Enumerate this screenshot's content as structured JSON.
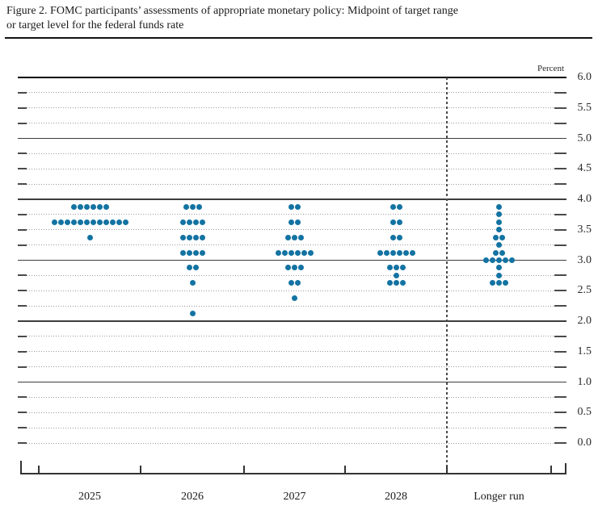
{
  "figure": {
    "title_line1": "Figure 2. FOMC participants’ assessments of appropriate monetary policy: Midpoint of target range",
    "title_line2": "or target level for the federal funds rate"
  },
  "chart_data": {
    "type": "scatter",
    "subtype": "fomc-dot-plot",
    "title": "FOMC participants’ assessments of appropriate monetary policy: Midpoint of target range or target level for the federal funds rate",
    "unit_label": "Percent",
    "categories": [
      "2025",
      "2026",
      "2027",
      "2028",
      "Longer run"
    ],
    "y_axis": {
      "min": 0.0,
      "max": 6.0,
      "gridline_step": 0.25,
      "label_step": 0.5,
      "tick_labels": [
        "0.0",
        "0.5",
        "1.0",
        "1.5",
        "2.0",
        "2.5",
        "3.0",
        "3.5",
        "4.0",
        "4.5",
        "5.0",
        "5.5",
        "6.0"
      ],
      "solid_lines_at": [
        1.0,
        2.0,
        3.0,
        4.0,
        5.0,
        6.0
      ],
      "dotted_lines_every": 0.25
    },
    "grid": "dotted quarter-point lines, solid integer lines",
    "legend_position": "none",
    "separator_before_category": "Longer run",
    "participants_per_column": 19,
    "series": [
      {
        "name": "2025",
        "dots": [
          {
            "rate": 3.875,
            "count": 6
          },
          {
            "rate": 3.625,
            "count": 12
          },
          {
            "rate": 3.375,
            "count": 1
          }
        ]
      },
      {
        "name": "2026",
        "dots": [
          {
            "rate": 3.875,
            "count": 3
          },
          {
            "rate": 3.625,
            "count": 4
          },
          {
            "rate": 3.375,
            "count": 4
          },
          {
            "rate": 3.125,
            "count": 4
          },
          {
            "rate": 2.875,
            "count": 2
          },
          {
            "rate": 2.625,
            "count": 1
          },
          {
            "rate": 2.125,
            "count": 1
          }
        ]
      },
      {
        "name": "2027",
        "dots": [
          {
            "rate": 3.875,
            "count": 2
          },
          {
            "rate": 3.625,
            "count": 2
          },
          {
            "rate": 3.375,
            "count": 3
          },
          {
            "rate": 3.125,
            "count": 6
          },
          {
            "rate": 2.875,
            "count": 3
          },
          {
            "rate": 2.625,
            "count": 2
          },
          {
            "rate": 2.375,
            "count": 1
          }
        ]
      },
      {
        "name": "2028",
        "dots": [
          {
            "rate": 3.875,
            "count": 2
          },
          {
            "rate": 3.625,
            "count": 2
          },
          {
            "rate": 3.375,
            "count": 2
          },
          {
            "rate": 3.125,
            "count": 6
          },
          {
            "rate": 2.875,
            "count": 3
          },
          {
            "rate": 2.75,
            "count": 1
          },
          {
            "rate": 2.625,
            "count": 3
          }
        ]
      },
      {
        "name": "Longer run",
        "dots": [
          {
            "rate": 3.875,
            "count": 1
          },
          {
            "rate": 3.75,
            "count": 1
          },
          {
            "rate": 3.625,
            "count": 1
          },
          {
            "rate": 3.5,
            "count": 1
          },
          {
            "rate": 3.375,
            "count": 2
          },
          {
            "rate": 3.25,
            "count": 1
          },
          {
            "rate": 3.125,
            "count": 2
          },
          {
            "rate": 3.0,
            "count": 5
          },
          {
            "rate": 2.875,
            "count": 1
          },
          {
            "rate": 2.75,
            "count": 1
          },
          {
            "rate": 2.625,
            "count": 3
          }
        ]
      }
    ]
  },
  "colors": {
    "dot": "#1373a2",
    "solid_gridline": "#3d3d3d",
    "top_gridline": "#000000",
    "dotted_gridline": "#9a9a9a",
    "tick": "#4a4a4a",
    "axis": "#333333",
    "dashed_separator": "#4a4a4a",
    "text": "#1a1a1a"
  }
}
